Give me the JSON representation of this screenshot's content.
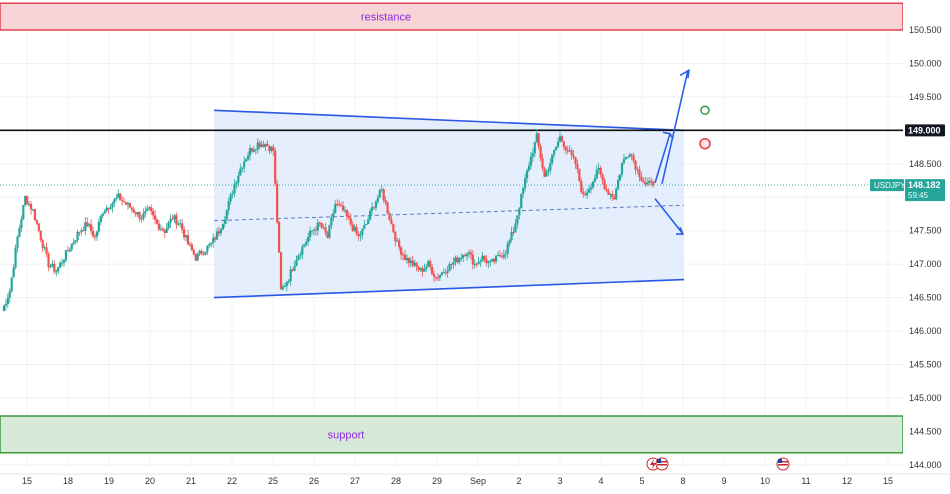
{
  "chart_data": {
    "type": "candlestick",
    "symbol": "USDJPY",
    "ylim": [
      143.95,
      151.2
    ],
    "y_ticks": [
      "150.500",
      "150.000",
      "149.500",
      "149.000",
      "148.500",
      "148.000",
      "147.500",
      "147.000",
      "146.500",
      "146.000",
      "145.500",
      "145.000",
      "144.500",
      "144.000"
    ],
    "x_ticks": [
      "15",
      "18",
      "19",
      "20",
      "21",
      "22",
      "25",
      "26",
      "27",
      "28",
      "29",
      "Sep",
      "2",
      "3",
      "4",
      "5",
      "8",
      "9",
      "10",
      "11",
      "12",
      "15"
    ],
    "resistance": {
      "label": "resistance",
      "low": 150.5,
      "high": 150.9,
      "color": "#f9d4d6",
      "border": "#e0434f"
    },
    "support": {
      "label": "support",
      "low": 144.18,
      "high": 144.73,
      "color": "#d6ead7",
      "border": "#3a9a3e"
    },
    "level_line": {
      "value": 149.0,
      "label": "149.000"
    },
    "current_price": {
      "value": 148.182,
      "label": "148.182",
      "countdown": "59:45",
      "color": "#26a69a"
    },
    "channel": {
      "upper": [
        149.3,
        149.0
      ],
      "lower": [
        146.5,
        146.77
      ],
      "mid": [
        147.65,
        147.88
      ],
      "fill": "#dbe8fb",
      "stroke": "#2957e6"
    },
    "close_series": [
      146.3,
      146.6,
      147.4,
      148.0,
      147.8,
      147.4,
      147.0,
      146.9,
      147.1,
      147.3,
      147.5,
      147.6,
      147.4,
      147.8,
      147.9,
      148.0,
      147.9,
      147.8,
      147.7,
      147.8,
      147.6,
      147.5,
      147.7,
      147.6,
      147.3,
      147.1,
      147.2,
      147.3,
      147.5,
      147.8,
      148.2,
      148.5,
      148.7,
      148.8,
      148.8,
      148.7,
      146.6,
      146.8,
      147.1,
      147.3,
      147.5,
      147.6,
      147.4,
      147.9,
      147.8,
      147.6,
      147.4,
      147.6,
      147.9,
      148.1,
      147.7,
      147.3,
      147.1,
      147.0,
      146.9,
      147.0,
      146.8,
      146.9,
      147.0,
      147.1,
      147.2,
      147.0,
      147.1,
      147.0,
      147.1,
      147.2,
      147.5,
      148.0,
      148.5,
      148.9,
      148.3,
      148.6,
      148.9,
      148.7,
      148.5,
      148.0,
      148.2,
      148.4,
      148.1,
      148.0,
      148.5,
      148.7,
      148.4,
      148.2,
      148.18
    ],
    "projection_arrows": [
      "up",
      "down"
    ],
    "signal_markers": [
      {
        "type": "green-circle",
        "price": 149.3
      },
      {
        "type": "red-circle",
        "price": 148.8
      }
    ]
  }
}
